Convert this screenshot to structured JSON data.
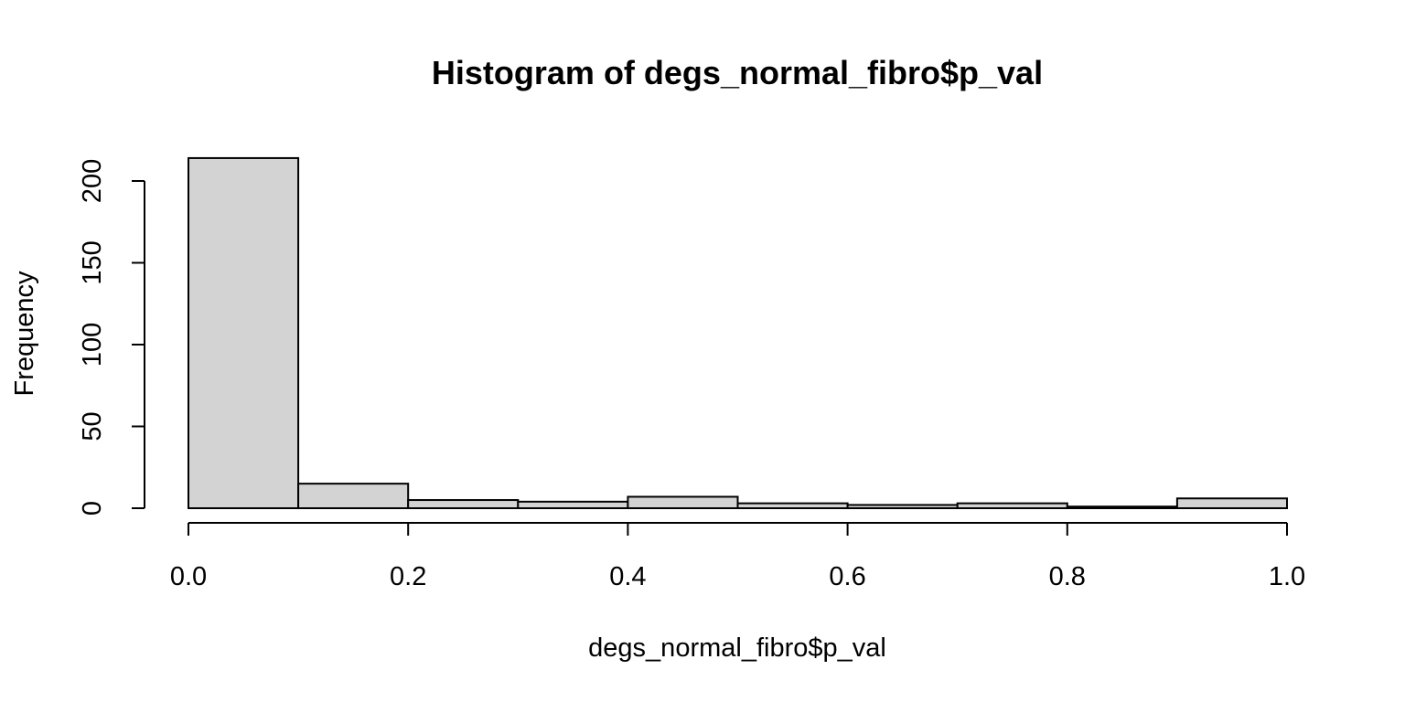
{
  "chart_data": {
    "type": "bar",
    "title": "Histogram of degs_normal_fibro$p_val",
    "xlabel": "degs_normal_fibro$p_val",
    "ylabel": "Frequency",
    "bins": [
      {
        "x0": 0.0,
        "x1": 0.1,
        "count": 214
      },
      {
        "x0": 0.1,
        "x1": 0.2,
        "count": 15
      },
      {
        "x0": 0.2,
        "x1": 0.3,
        "count": 5
      },
      {
        "x0": 0.3,
        "x1": 0.4,
        "count": 4
      },
      {
        "x0": 0.4,
        "x1": 0.5,
        "count": 7
      },
      {
        "x0": 0.5,
        "x1": 0.6,
        "count": 3
      },
      {
        "x0": 0.6,
        "x1": 0.7,
        "count": 2
      },
      {
        "x0": 0.7,
        "x1": 0.8,
        "count": 3
      },
      {
        "x0": 0.8,
        "x1": 0.9,
        "count": 1
      },
      {
        "x0": 0.9,
        "x1": 1.0,
        "count": 6
      }
    ],
    "xlim": [
      0.0,
      1.0
    ],
    "ylim": [
      0,
      214
    ],
    "x_ticks": [
      0.0,
      0.2,
      0.4,
      0.6,
      0.8,
      1.0
    ],
    "x_tick_labels": [
      "0.0",
      "0.2",
      "0.4",
      "0.6",
      "0.8",
      "1.0"
    ],
    "y_ticks": [
      0,
      50,
      100,
      150,
      200
    ],
    "y_tick_labels": [
      "0",
      "50",
      "100",
      "150",
      "200"
    ],
    "grid": false,
    "colors": {
      "bar_fill": "#d3d3d3",
      "bar_stroke": "#000000",
      "axis": "#000000"
    }
  }
}
